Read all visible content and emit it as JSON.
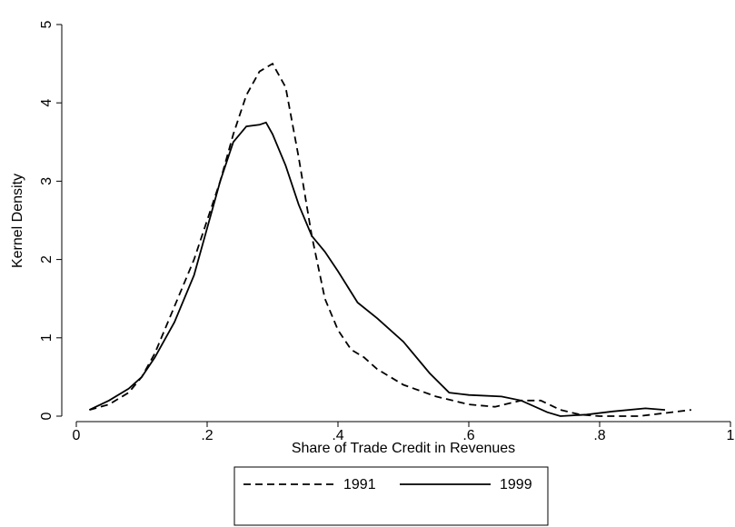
{
  "chart_data": {
    "type": "line",
    "xlabel": "Share of Trade Credit in Revenues",
    "ylabel": "Kernel Density",
    "xlim": [
      0,
      1
    ],
    "ylim": [
      0,
      5
    ],
    "xticks": [
      0,
      {
        "value": 0.2,
        "label": ".2"
      },
      {
        "value": 0.4,
        "label": ".4"
      },
      {
        "value": 0.6,
        "label": ".6"
      },
      {
        "value": 0.8,
        "label": ".8"
      },
      1
    ],
    "yticks": [
      0,
      1,
      2,
      3,
      4,
      5
    ],
    "legend": "bottom",
    "series": [
      {
        "name": "1991",
        "color": "#000000",
        "style": "dashed",
        "x": [
          0.02,
          0.05,
          0.08,
          0.1,
          0.12,
          0.15,
          0.18,
          0.2,
          0.22,
          0.24,
          0.26,
          0.28,
          0.3,
          0.32,
          0.34,
          0.36,
          0.38,
          0.4,
          0.42,
          0.44,
          0.46,
          0.5,
          0.55,
          0.6,
          0.64,
          0.68,
          0.71,
          0.74,
          0.77,
          0.8,
          0.86,
          0.9,
          0.94
        ],
        "values": [
          0.08,
          0.15,
          0.3,
          0.5,
          0.8,
          1.4,
          2.0,
          2.5,
          3.0,
          3.6,
          4.1,
          4.4,
          4.5,
          4.2,
          3.3,
          2.3,
          1.5,
          1.1,
          0.85,
          0.75,
          0.6,
          0.4,
          0.25,
          0.15,
          0.12,
          0.2,
          0.2,
          0.08,
          0.02,
          0.0,
          0.0,
          0.04,
          0.08
        ]
      },
      {
        "name": "1999",
        "color": "#000000",
        "style": "solid",
        "x": [
          0.02,
          0.05,
          0.08,
          0.1,
          0.12,
          0.15,
          0.18,
          0.2,
          0.22,
          0.24,
          0.26,
          0.28,
          0.29,
          0.3,
          0.32,
          0.34,
          0.36,
          0.38,
          0.4,
          0.43,
          0.46,
          0.5,
          0.54,
          0.57,
          0.6,
          0.65,
          0.68,
          0.72,
          0.74,
          0.78,
          0.82,
          0.87,
          0.9
        ],
        "values": [
          0.08,
          0.2,
          0.35,
          0.5,
          0.75,
          1.2,
          1.8,
          2.4,
          3.0,
          3.5,
          3.7,
          3.72,
          3.75,
          3.6,
          3.2,
          2.7,
          2.3,
          2.1,
          1.85,
          1.45,
          1.25,
          0.95,
          0.55,
          0.3,
          0.27,
          0.25,
          0.2,
          0.05,
          0.0,
          0.02,
          0.06,
          0.1,
          0.08
        ]
      }
    ]
  }
}
